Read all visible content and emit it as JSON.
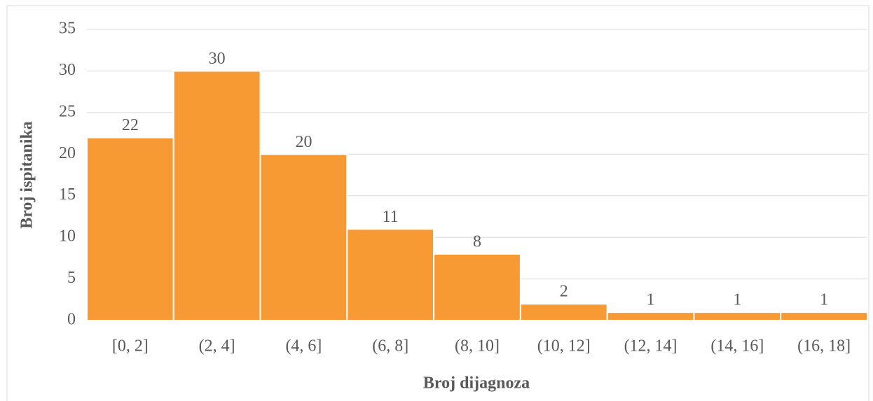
{
  "chart_data": {
    "type": "bar",
    "x_label": "Broj dijagnoza",
    "y_label": "Broj ispitanika",
    "categories": [
      "[0, 2]",
      "(2, 4]",
      "(4, 6]",
      "(6, 8]",
      "(8, 10]",
      "(10, 12]",
      "(12, 14]",
      "(14, 16]",
      "(16, 18]"
    ],
    "values": [
      22,
      30,
      20,
      11,
      8,
      2,
      1,
      1,
      1
    ],
    "color": "#f79a34",
    "ylim": [
      0,
      35
    ],
    "yticks": [
      0,
      5,
      10,
      15,
      20,
      25,
      30,
      35
    ],
    "grid": true
  }
}
